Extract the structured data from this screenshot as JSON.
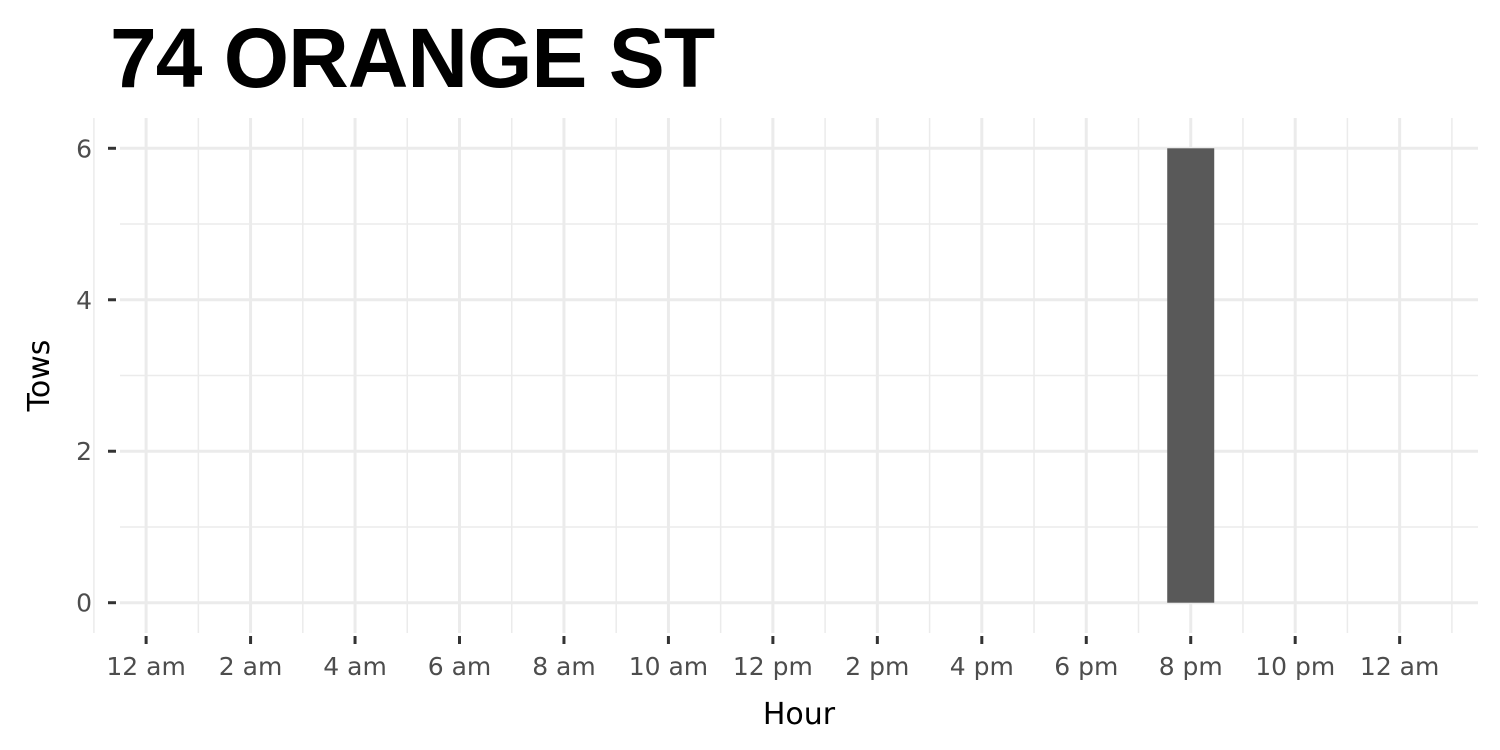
{
  "chart_data": {
    "type": "bar",
    "title": "74 ORANGE ST",
    "xlabel": "Hour",
    "ylabel": "Tows",
    "x_ticks": [
      "12 am",
      "2 am",
      "4 am",
      "6 am",
      "8 am",
      "10 am",
      "12 pm",
      "2 pm",
      "4 pm",
      "6 pm",
      "8 pm",
      "10 pm",
      "12 am"
    ],
    "x_tick_hours": [
      0,
      2,
      4,
      6,
      8,
      10,
      12,
      14,
      16,
      18,
      20,
      22,
      24
    ],
    "xlim": [
      -0.5,
      25.5
    ],
    "y_ticks": [
      0,
      2,
      4,
      6
    ],
    "ylim": [
      -0.4,
      6.4
    ],
    "bars": [
      {
        "hour": 20,
        "value": 6
      }
    ],
    "bar_color": "#595959",
    "grid": true
  }
}
